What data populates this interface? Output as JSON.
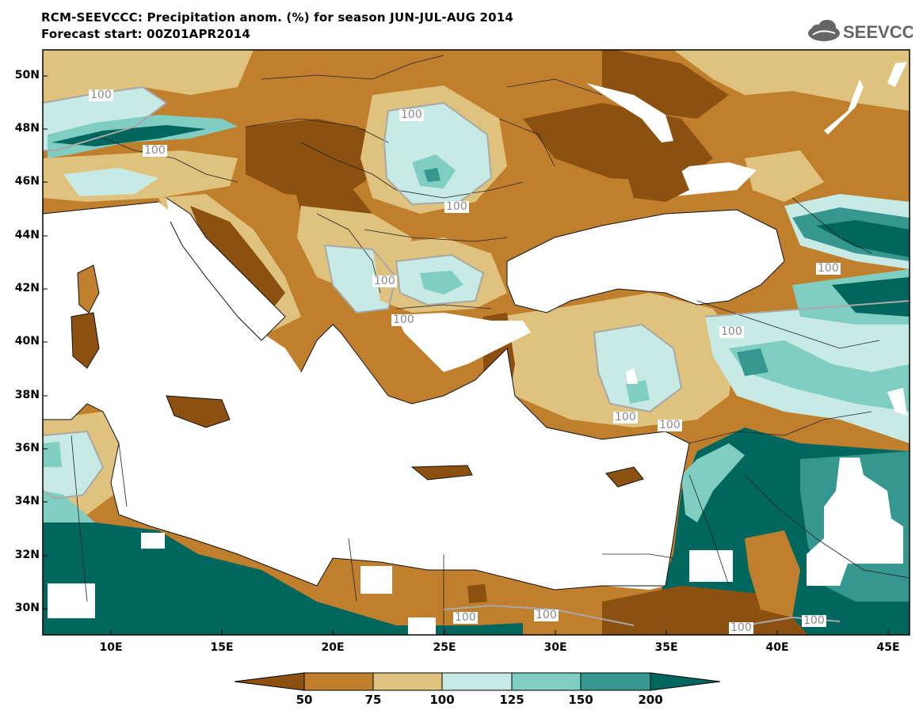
{
  "header": {
    "title_line1": "RCM-SEEVCCC: Precipitation anom. (%) for season JUN-JUL-AUG 2014",
    "title_line2": "Forecast start: 00Z01APR2014",
    "logo_text": "SEEVCCC"
  },
  "map": {
    "lat_ticks": [
      "50N",
      "48N",
      "46N",
      "44N",
      "42N",
      "40N",
      "38N",
      "36N",
      "34N",
      "32N",
      "30N"
    ],
    "lon_ticks": [
      "10E",
      "15E",
      "20E",
      "25E",
      "30E",
      "35E",
      "40E",
      "45E"
    ],
    "contour_labels": [
      "100",
      "100",
      "100",
      "100",
      "100",
      "100",
      "100",
      "100",
      "100",
      "100",
      "100",
      "100",
      "100",
      "100",
      "100",
      "100"
    ],
    "colors": {
      "below_50": "#8c5010",
      "50_75": "#bf7f2d",
      "75_100": "#dfc27d",
      "100_125": "#c7eae5",
      "125_150": "#80cdc1",
      "150_200": "#35978f",
      "above_200": "#01665e",
      "sea": "#ffffff"
    }
  },
  "colorbar": {
    "labels": [
      "50",
      "75",
      "100",
      "125",
      "150",
      "200"
    ],
    "colors": [
      "#8c5010",
      "#bf7f2d",
      "#dfc27d",
      "#c7eae5",
      "#80cdc1",
      "#35978f",
      "#01665e"
    ]
  }
}
